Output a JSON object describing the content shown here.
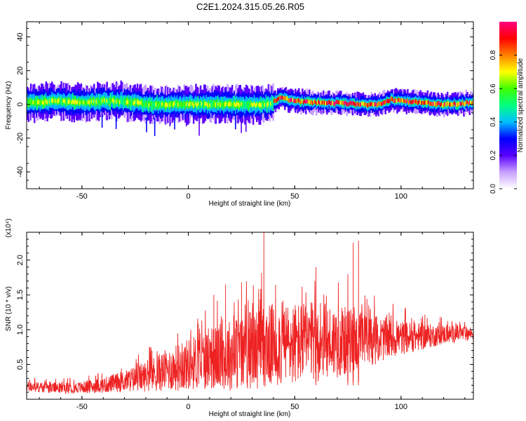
{
  "title": "C2E1.2024.315.05.26.R05",
  "chart_data": [
    {
      "type": "heatmap",
      "xlabel": "Height of straight line (km)",
      "ylabel": "Frequency (Hz)",
      "xlim": [
        -76,
        134
      ],
      "ylim": [
        -50,
        49
      ],
      "xticks": [
        -50,
        0,
        50,
        100
      ],
      "xtick_labels": [
        "-50",
        "0",
        "50",
        "100"
      ],
      "yticks": [
        -40,
        -20,
        0,
        20,
        40
      ],
      "ytick_labels": [
        "-40",
        "-20",
        "0",
        "20",
        "40"
      ],
      "colorbar": {
        "label": "Normalized spectral amplitude",
        "range": [
          0,
          1
        ],
        "ticks": [
          0.0,
          0.2,
          0.4,
          0.6,
          0.8
        ],
        "tick_labels": [
          "0.0",
          "0.2",
          "0.4",
          "0.6",
          "0.8"
        ],
        "colors": [
          "#ffffff",
          "#c8a0ff",
          "#5a00ff",
          "#0000ff",
          "#00bfff",
          "#00ff80",
          "#40ff00",
          "#ffff00",
          "#ff8000",
          "#ff0000",
          "#ff0080"
        ]
      },
      "ridge": {
        "x": [
          -76,
          -60,
          -50,
          -40,
          -30,
          -20,
          -10,
          0,
          10,
          20,
          30,
          38,
          43,
          50,
          60,
          70,
          80,
          90,
          95,
          100,
          110,
          120,
          134
        ],
        "y": [
          1,
          2,
          1,
          2,
          2,
          0,
          0,
          0,
          0,
          0,
          0,
          0,
          4,
          2,
          1,
          1,
          0,
          0,
          3,
          2,
          1,
          0,
          1
        ]
      },
      "grid": false
    },
    {
      "type": "line",
      "xlabel": "Height of straight line (km)",
      "ylabel": "SNR (10 * v/v)",
      "y_multiplier": "(x10⁴)",
      "xlim": [
        -76,
        134
      ],
      "ylim": [
        0,
        24000
      ],
      "xticks": [
        -50,
        0,
        50,
        100
      ],
      "xtick_labels": [
        "-50",
        "0",
        "50",
        "100"
      ],
      "yticks": [
        5000,
        10000,
        15000,
        20000
      ],
      "ytick_labels": [
        "0.5",
        "1.0",
        "1.5",
        "2.0"
      ],
      "color": "#ee2222",
      "envelope": {
        "x": [
          -76,
          -60,
          -50,
          -40,
          -30,
          -20,
          -10,
          0,
          10,
          20,
          30,
          40,
          50,
          60,
          70,
          80,
          90,
          100,
          110,
          120,
          134
        ],
        "base": [
          1800,
          1600,
          1700,
          2000,
          2600,
          3300,
          4200,
          5000,
          5800,
          6400,
          7200,
          7800,
          8000,
          8200,
          8300,
          8400,
          8600,
          8800,
          9000,
          9300,
          9500
        ],
        "spread": [
          1400,
          1400,
          1500,
          2000,
          2800,
          4000,
          5500,
          6800,
          8000,
          9500,
          10500,
          11000,
          11000,
          10500,
          9500,
          8000,
          6000,
          4500,
          3500,
          2500,
          1800
        ]
      },
      "peaks": [
        {
          "x": 35.5,
          "y": 24000
        },
        {
          "x": 77.5,
          "y": 22500
        },
        {
          "x": 80.0,
          "y": 22800
        },
        {
          "x": 12.0,
          "y": 15000
        },
        {
          "x": 17.5,
          "y": 16500
        },
        {
          "x": 25.0,
          "y": 16800
        },
        {
          "x": 60.0,
          "y": 19000
        },
        {
          "x": 75.0,
          "y": 18000
        }
      ],
      "grid": false
    }
  ]
}
